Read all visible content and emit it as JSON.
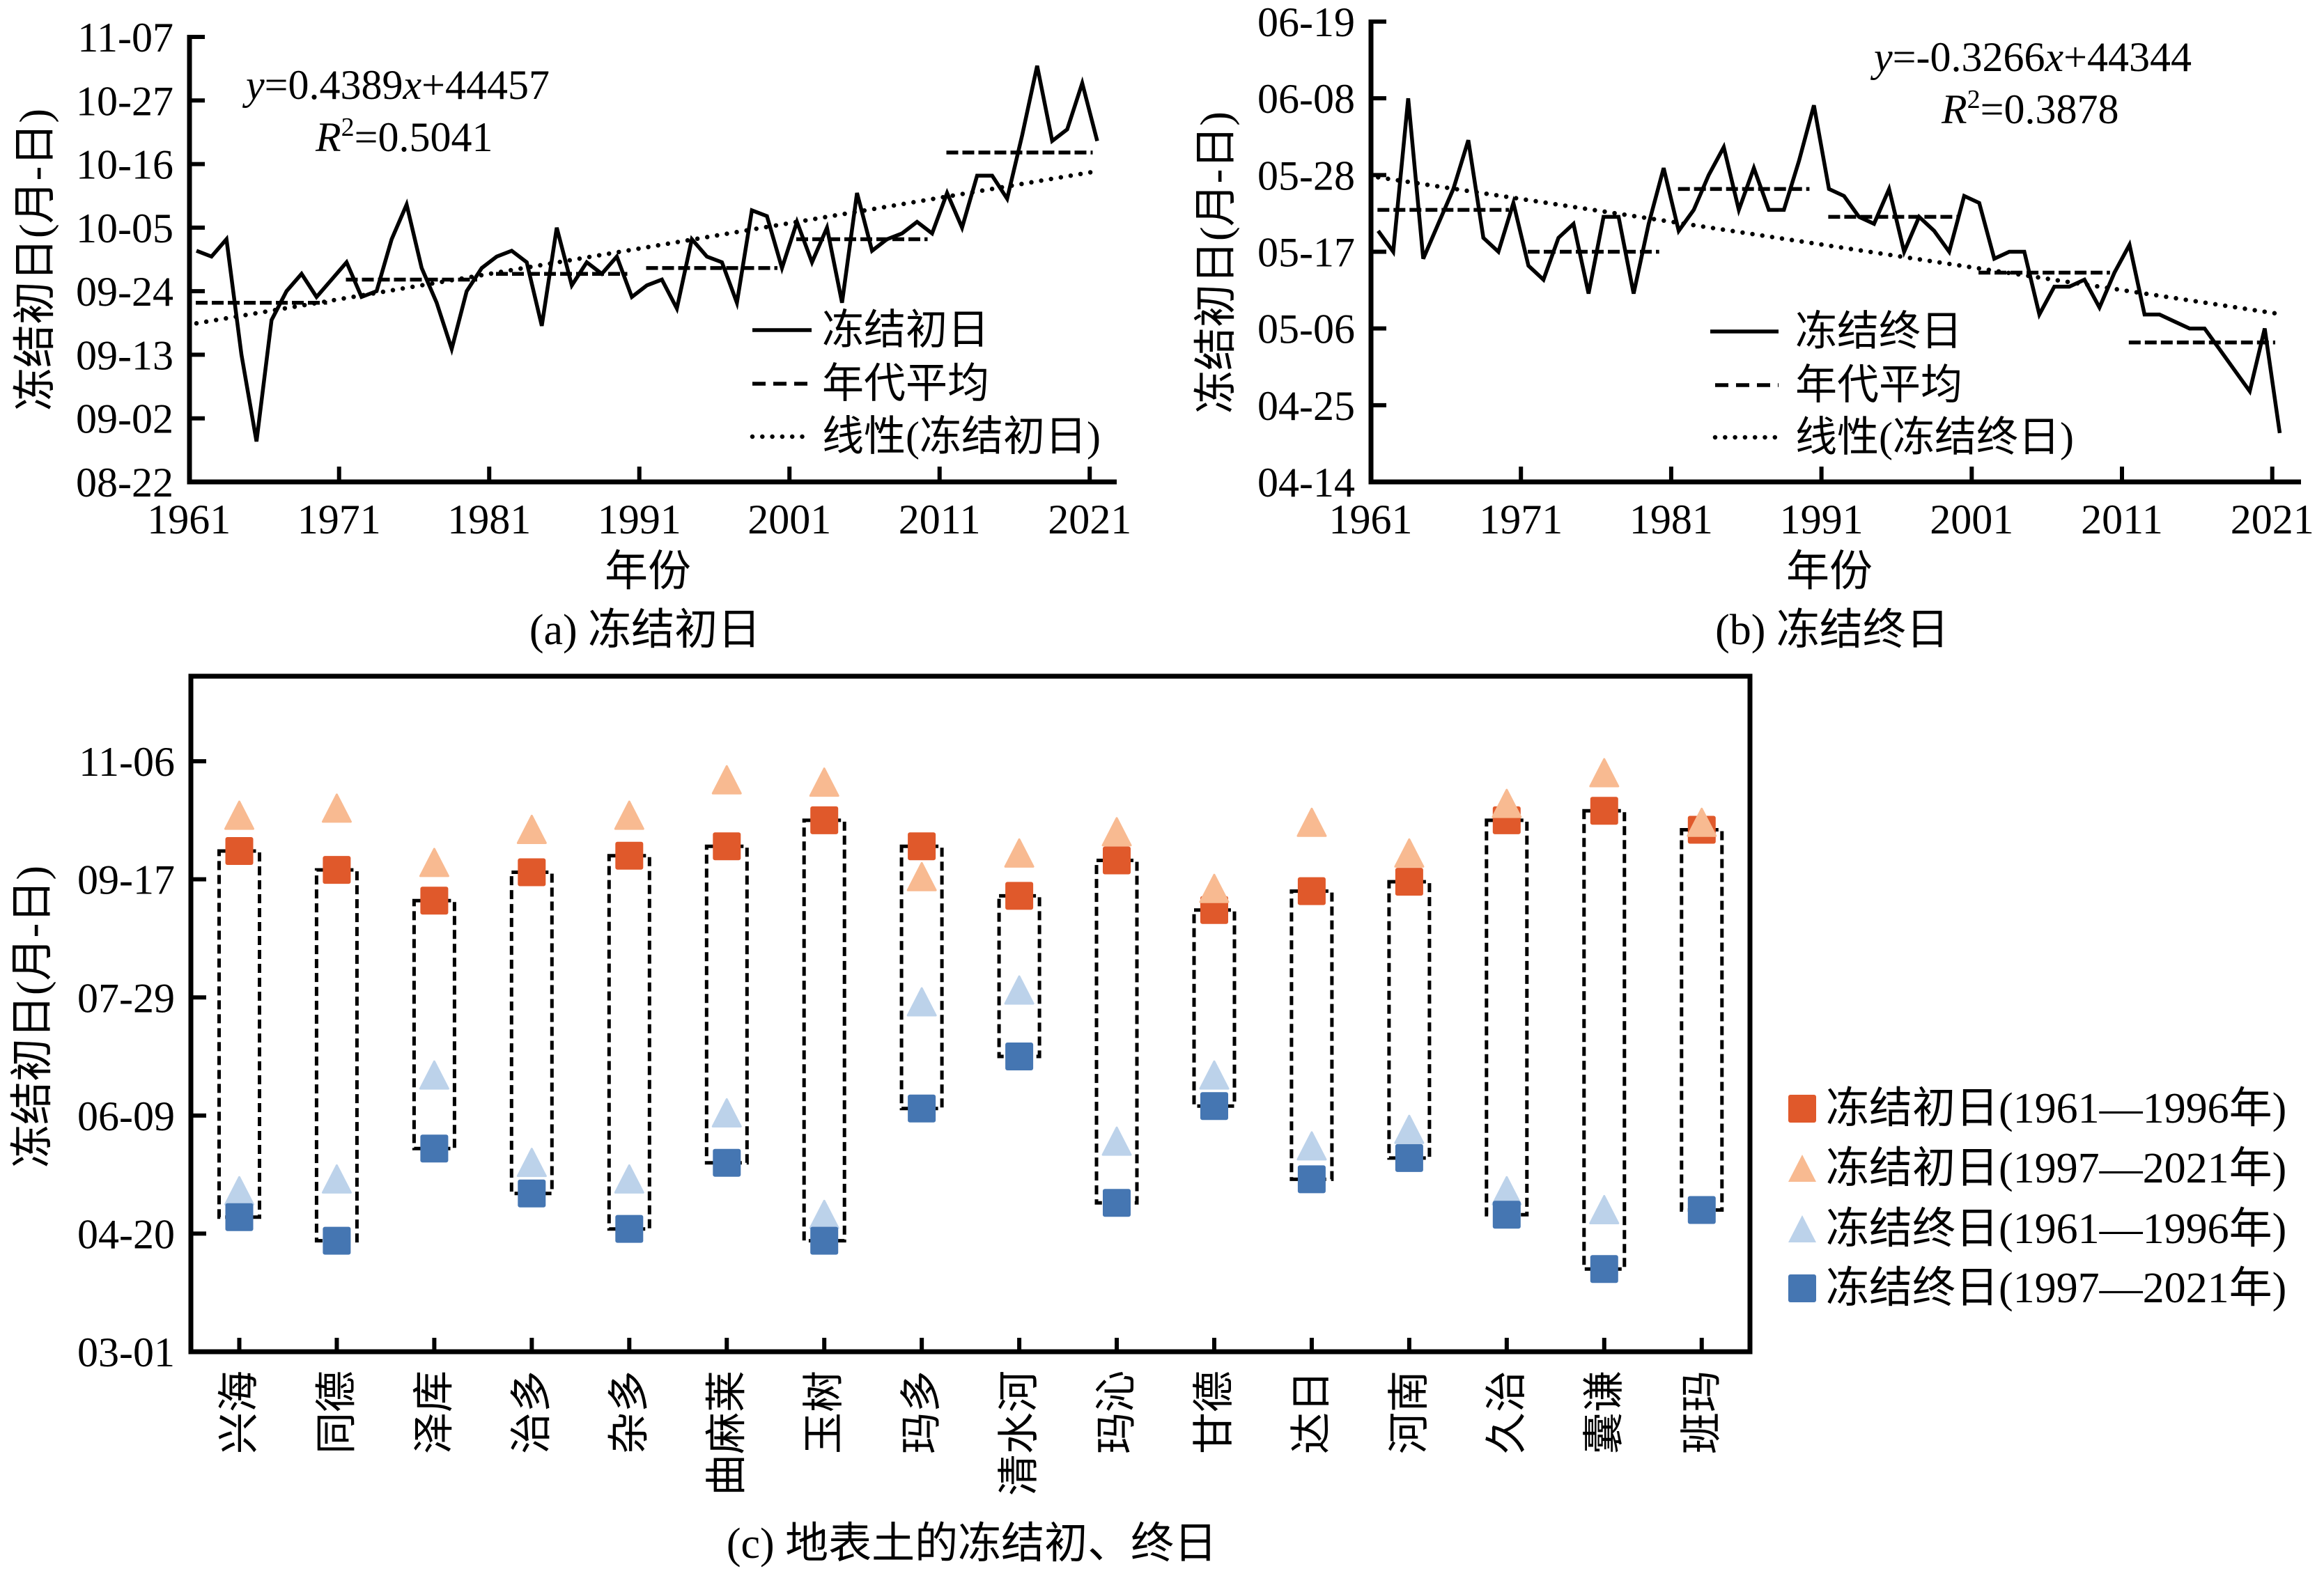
{
  "chart_data": [
    {
      "id": "a",
      "type": "line",
      "title": "(a) 冻结初日",
      "xlabel": "年份",
      "ylabel": "冻结初日(月-日)",
      "xlim": [
        1961,
        2021
      ],
      "ylim": [
        "08-22",
        "11-07"
      ],
      "x_ticks": [
        1961,
        1971,
        1981,
        1991,
        2001,
        2011,
        2021
      ],
      "y_ticks": [
        "08-22",
        "09-02",
        "09-13",
        "09-24",
        "10-05",
        "10-16",
        "10-27",
        "11-07"
      ],
      "grid": false,
      "legend_position": "bottom-right",
      "x": [
        1961,
        1962,
        1963,
        1964,
        1965,
        1966,
        1967,
        1968,
        1969,
        1970,
        1971,
        1972,
        1973,
        1974,
        1975,
        1976,
        1977,
        1978,
        1979,
        1980,
        1981,
        1982,
        1983,
        1984,
        1985,
        1986,
        1987,
        1988,
        1989,
        1990,
        1991,
        1992,
        1993,
        1994,
        1995,
        1996,
        1997,
        1998,
        1999,
        2000,
        2001,
        2002,
        2003,
        2004,
        2005,
        2006,
        2007,
        2008,
        2009,
        2010,
        2011,
        2012,
        2013,
        2014,
        2015,
        2016,
        2017,
        2018,
        2019,
        2020,
        2021
      ],
      "series": [
        {
          "name": "冻结初日",
          "style": "solid",
          "values": [
            "10-01",
            "09-30",
            "10-03",
            "09-13",
            "08-29",
            "09-19",
            "09-24",
            "09-27",
            "09-23",
            "09-26",
            "09-29",
            "09-23",
            "09-24",
            "10-03",
            "10-09",
            "09-28",
            "09-22",
            "09-14",
            "09-24",
            "09-28",
            "09-30",
            "10-01",
            "09-29",
            "09-18",
            "10-05",
            "09-25",
            "09-29",
            "09-27",
            "09-30",
            "09-23",
            "09-25",
            "09-26",
            "09-21",
            "10-03",
            "09-30",
            "09-29",
            "09-22",
            "10-08",
            "10-07",
            "09-28",
            "10-06",
            "09-29",
            "10-05",
            "09-22",
            "10-11",
            "10-01",
            "10-03",
            "10-04",
            "10-06",
            "10-04",
            "10-11",
            "10-05",
            "10-14",
            "10-14",
            "10-10",
            "10-21",
            "11-02",
            "10-20",
            "10-22",
            "10-30",
            "10-20"
          ]
        },
        {
          "name": "年代平均",
          "style": "dashed",
          "segments": [
            {
              "start": 1961,
              "end": 1970,
              "value": "09-22"
            },
            {
              "start": 1971,
              "end": 1980,
              "value": "09-26"
            },
            {
              "start": 1981,
              "end": 1990,
              "value": "09-27"
            },
            {
              "start": 1991,
              "end": 2000,
              "value": "09-28"
            },
            {
              "start": 2001,
              "end": 2010,
              "value": "10-03"
            },
            {
              "start": 2011,
              "end": 2021,
              "value": "10-18"
            }
          ]
        },
        {
          "name": "线性(冻结初日)",
          "style": "dotted",
          "trend": {
            "slope": 0.4389,
            "intercept": 44457
          }
        }
      ],
      "annotations": {
        "equation": [
          {
            "text": "y",
            "italic": true
          },
          {
            "text": "=0.4389"
          },
          {
            "text": "x",
            "italic": true
          },
          {
            "text": "+44457"
          }
        ],
        "r_squared": [
          {
            "text": "R",
            "italic": true
          },
          {
            "text": "2",
            "superscript": true
          },
          {
            "text": "=0.5041"
          }
        ]
      }
    },
    {
      "id": "b",
      "type": "line",
      "title": "(b) 冻结终日",
      "xlabel": "年份",
      "ylabel": "冻结初日(月-日)",
      "xlim": [
        1961,
        2021
      ],
      "ylim": [
        "04-14",
        "06-19"
      ],
      "x_ticks": [
        1961,
        1971,
        1981,
        1991,
        2001,
        2011,
        2021
      ],
      "y_ticks": [
        "04-14",
        "04-25",
        "05-06",
        "05-17",
        "05-28",
        "06-08",
        "06-19"
      ],
      "grid": false,
      "legend_position": "bottom-right",
      "x": [
        1961,
        1962,
        1963,
        1964,
        1965,
        1966,
        1967,
        1968,
        1969,
        1970,
        1971,
        1972,
        1973,
        1974,
        1975,
        1976,
        1977,
        1978,
        1979,
        1980,
        1981,
        1982,
        1983,
        1984,
        1985,
        1986,
        1987,
        1988,
        1989,
        1990,
        1991,
        1992,
        1993,
        1994,
        1995,
        1996,
        1997,
        1998,
        1999,
        2000,
        2001,
        2002,
        2003,
        2004,
        2005,
        2006,
        2007,
        2008,
        2009,
        2010,
        2011,
        2012,
        2013,
        2014,
        2015,
        2016,
        2017,
        2018,
        2019,
        2020,
        2021
      ],
      "series": [
        {
          "name": "冻结终日",
          "style": "solid",
          "values": [
            "05-20",
            "05-17",
            "06-08",
            "05-16",
            "05-21",
            "05-26",
            "06-02",
            "05-19",
            "05-17",
            "05-24",
            "05-15",
            "05-13",
            "05-19",
            "05-21",
            "05-11",
            "05-22",
            "05-22",
            "05-11",
            "05-21",
            "05-29",
            "05-20",
            "05-23",
            "05-28",
            "06-01",
            "05-23",
            "05-29",
            "05-23",
            "05-23",
            "05-30",
            "06-07",
            "05-26",
            "05-25",
            "05-22",
            "05-21",
            "05-26",
            "05-17",
            "05-22",
            "05-20",
            "05-17",
            "05-25",
            "05-24",
            "05-16",
            "05-17",
            "05-17",
            "05-08",
            "05-12",
            "05-12",
            "05-13",
            "05-09",
            "05-14",
            "05-18",
            "05-08",
            "05-08",
            "05-07",
            "05-06",
            "05-06",
            "05-03",
            "04-30",
            "04-27",
            "05-06",
            "04-21"
          ]
        },
        {
          "name": "年代平均",
          "style": "dashed",
          "segments": [
            {
              "start": 1961,
              "end": 1970,
              "value": "05-23"
            },
            {
              "start": 1971,
              "end": 1980,
              "value": "05-17"
            },
            {
              "start": 1981,
              "end": 1990,
              "value": "05-26"
            },
            {
              "start": 1991,
              "end": 2000,
              "value": "05-22"
            },
            {
              "start": 2001,
              "end": 2010,
              "value": "05-14"
            },
            {
              "start": 2011,
              "end": 2021,
              "value": "05-04"
            }
          ]
        },
        {
          "name": "线性(冻结终日)",
          "style": "dotted",
          "trend": {
            "slope": -0.3266,
            "intercept": 44344
          }
        }
      ],
      "annotations": {
        "equation": [
          {
            "text": "y",
            "italic": true
          },
          {
            "text": "=-0.3266"
          },
          {
            "text": "x",
            "italic": true
          },
          {
            "text": "+44344"
          }
        ],
        "r_squared": [
          {
            "text": "R",
            "italic": true
          },
          {
            "text": "2",
            "superscript": true
          },
          {
            "text": "=0.3878"
          }
        ]
      }
    },
    {
      "id": "c",
      "type": "scatter",
      "title": "(c) 地表土的冻结初、终日",
      "xlabel": "",
      "ylabel": "冻结初日(月-日)",
      "ylim": [
        "03-01",
        "12-12"
      ],
      "y_ticks": [
        "03-01",
        "04-20",
        "06-09",
        "07-29",
        "09-17",
        "11-06"
      ],
      "grid": false,
      "legend_position": "right",
      "categories": [
        "兴海",
        "同德",
        "泽库",
        "治多",
        "杂多",
        "曲麻莱",
        "玉树",
        "玛多",
        "清水河",
        "玛沁",
        "甘德",
        "达日",
        "河南",
        "久治",
        "囊谦",
        "班玛"
      ],
      "series": [
        {
          "name": "冻结初日(1961—1996年)",
          "marker": "square",
          "color": "#E0592B",
          "values": [
            "09-29",
            "09-21",
            "09-08",
            "09-20",
            "09-27",
            "10-01",
            "10-12",
            "10-01",
            "09-10",
            "09-25",
            "09-04",
            "09-12",
            "09-16",
            "10-12",
            "10-16",
            "10-08"
          ]
        },
        {
          "name": "冻结初日(1997—2021年)",
          "marker": "triangle",
          "color": "#F8BA91",
          "values": [
            "10-14",
            "10-17",
            "09-24",
            "10-08",
            "10-14",
            "10-29",
            "10-28",
            "09-18",
            "09-28",
            "10-07",
            "09-13",
            "10-11",
            "09-28",
            "10-19",
            "11-01",
            "10-11"
          ]
        },
        {
          "name": "冻结终日(1961—1996年)",
          "marker": "triangle",
          "color": "#BCD2EA",
          "values": [
            "05-08",
            "05-13",
            "06-26",
            "05-20",
            "05-13",
            "06-10",
            "04-28",
            "07-27",
            "08-01",
            "05-29",
            "06-26",
            "05-27",
            "06-03",
            "05-08",
            "04-30",
            null
          ]
        },
        {
          "name": "冻结终日(1997—2021年)",
          "marker": "square",
          "color": "#4576B2",
          "values": [
            "04-27",
            "04-17",
            "05-26",
            "05-07",
            "04-22",
            "05-20",
            "04-17",
            "06-12",
            "07-04",
            "05-03",
            "06-13",
            "05-13",
            "05-22",
            "04-28",
            "04-05",
            "04-30"
          ]
        }
      ],
      "range_boxes": {
        "from_series": 0,
        "to_series": 3,
        "style": "dashed"
      }
    }
  ]
}
